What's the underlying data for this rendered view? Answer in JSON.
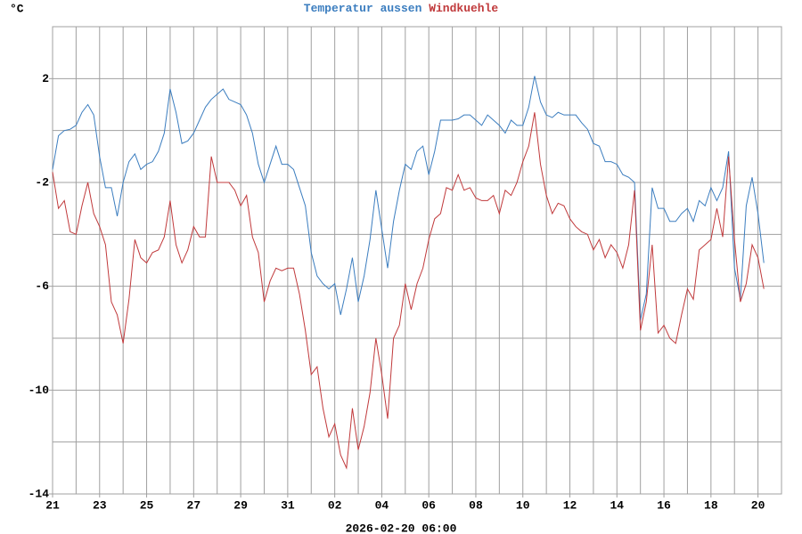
{
  "chart_data": {
    "type": "line",
    "unit": "°C",
    "footer": "2026-02-20 06:00",
    "grid": true,
    "xlim": [
      "2026-01-21 00:00",
      "2026-02-21 00:00"
    ],
    "ylim": [
      -14,
      4
    ],
    "yticks": [
      -14,
      -10,
      -6,
      -2,
      2
    ],
    "y_minor_ticks": [
      -12,
      -8,
      -4,
      0
    ],
    "xticks": [
      {
        "value": "2026-01-21 00:00",
        "label": "21"
      },
      {
        "value": "2026-01-23 00:00",
        "label": "23"
      },
      {
        "value": "2026-01-25 00:00",
        "label": "25"
      },
      {
        "value": "2026-01-27 00:00",
        "label": "27"
      },
      {
        "value": "2026-01-29 00:00",
        "label": "29"
      },
      {
        "value": "2026-01-31 00:00",
        "label": "31"
      },
      {
        "value": "2026-02-02 00:00",
        "label": "02"
      },
      {
        "value": "2026-02-04 00:00",
        "label": "04"
      },
      {
        "value": "2026-02-06 00:00",
        "label": "06"
      },
      {
        "value": "2026-02-08 00:00",
        "label": "08"
      },
      {
        "value": "2026-02-10 00:00",
        "label": "10"
      },
      {
        "value": "2026-02-12 00:00",
        "label": "12"
      },
      {
        "value": "2026-02-14 00:00",
        "label": "14"
      },
      {
        "value": "2026-02-16 00:00",
        "label": "16"
      },
      {
        "value": "2026-02-18 00:00",
        "label": "18"
      },
      {
        "value": "2026-02-20 00:00",
        "label": "20"
      }
    ],
    "x_minor_ticks": [
      "2026-01-22 00:00",
      "2026-01-24 00:00",
      "2026-01-26 00:00",
      "2026-01-28 00:00",
      "2026-01-30 00:00",
      "2026-02-01 00:00",
      "2026-02-03 00:00",
      "2026-02-05 00:00",
      "2026-02-07 00:00",
      "2026-02-09 00:00",
      "2026-02-11 00:00",
      "2026-02-13 00:00",
      "2026-02-15 00:00",
      "2026-02-17 00:00",
      "2026-02-19 00:00"
    ],
    "x": [
      "2026-01-21 00:00",
      "2026-01-21 06:00",
      "2026-01-21 12:00",
      "2026-01-21 18:00",
      "2026-01-22 00:00",
      "2026-01-22 06:00",
      "2026-01-22 12:00",
      "2026-01-22 18:00",
      "2026-01-23 00:00",
      "2026-01-23 06:00",
      "2026-01-23 12:00",
      "2026-01-23 18:00",
      "2026-01-24 00:00",
      "2026-01-24 06:00",
      "2026-01-24 12:00",
      "2026-01-24 18:00",
      "2026-01-25 00:00",
      "2026-01-25 06:00",
      "2026-01-25 12:00",
      "2026-01-25 18:00",
      "2026-01-26 00:00",
      "2026-01-26 06:00",
      "2026-01-26 12:00",
      "2026-01-26 18:00",
      "2026-01-27 00:00",
      "2026-01-27 06:00",
      "2026-01-27 12:00",
      "2026-01-27 18:00",
      "2026-01-28 00:00",
      "2026-01-28 06:00",
      "2026-01-28 12:00",
      "2026-01-28 18:00",
      "2026-01-29 00:00",
      "2026-01-29 06:00",
      "2026-01-29 12:00",
      "2026-01-29 18:00",
      "2026-01-30 00:00",
      "2026-01-30 06:00",
      "2026-01-30 12:00",
      "2026-01-30 18:00",
      "2026-01-31 00:00",
      "2026-01-31 06:00",
      "2026-01-31 12:00",
      "2026-01-31 18:00",
      "2026-02-01 00:00",
      "2026-02-01 06:00",
      "2026-02-01 12:00",
      "2026-02-01 18:00",
      "2026-02-02 00:00",
      "2026-02-02 06:00",
      "2026-02-02 12:00",
      "2026-02-02 18:00",
      "2026-02-03 00:00",
      "2026-02-03 06:00",
      "2026-02-03 12:00",
      "2026-02-03 18:00",
      "2026-02-04 00:00",
      "2026-02-04 06:00",
      "2026-02-04 12:00",
      "2026-02-04 18:00",
      "2026-02-05 00:00",
      "2026-02-05 06:00",
      "2026-02-05 12:00",
      "2026-02-05 18:00",
      "2026-02-06 00:00",
      "2026-02-06 06:00",
      "2026-02-06 12:00",
      "2026-02-06 18:00",
      "2026-02-07 00:00",
      "2026-02-07 06:00",
      "2026-02-07 12:00",
      "2026-02-07 18:00",
      "2026-02-08 00:00",
      "2026-02-08 06:00",
      "2026-02-08 12:00",
      "2026-02-08 18:00",
      "2026-02-09 00:00",
      "2026-02-09 06:00",
      "2026-02-09 12:00",
      "2026-02-09 18:00",
      "2026-02-10 00:00",
      "2026-02-10 06:00",
      "2026-02-10 12:00",
      "2026-02-10 18:00",
      "2026-02-11 00:00",
      "2026-02-11 06:00",
      "2026-02-11 12:00",
      "2026-02-11 18:00",
      "2026-02-12 00:00",
      "2026-02-12 06:00",
      "2026-02-12 12:00",
      "2026-02-12 18:00",
      "2026-02-13 00:00",
      "2026-02-13 06:00",
      "2026-02-13 12:00",
      "2026-02-13 18:00",
      "2026-02-14 00:00",
      "2026-02-14 06:00",
      "2026-02-14 12:00",
      "2026-02-14 18:00",
      "2026-02-15 00:00",
      "2026-02-15 06:00",
      "2026-02-15 12:00",
      "2026-02-15 18:00",
      "2026-02-16 00:00",
      "2026-02-16 06:00",
      "2026-02-16 12:00",
      "2026-02-16 18:00",
      "2026-02-17 00:00",
      "2026-02-17 06:00",
      "2026-02-17 12:00",
      "2026-02-17 18:00",
      "2026-02-18 00:00",
      "2026-02-18 06:00",
      "2026-02-18 12:00",
      "2026-02-18 18:00",
      "2026-02-19 00:00",
      "2026-02-19 06:00",
      "2026-02-19 12:00",
      "2026-02-19 18:00",
      "2026-02-20 00:00",
      "2026-02-20 06:00"
    ],
    "series": [
      {
        "name": "Temperatur aussen",
        "color": "#3b7dbf",
        "values": [
          -1.5,
          -0.2,
          0,
          0.05,
          0.2,
          0.7,
          1.0,
          0.6,
          -1,
          -2.2,
          -2.2,
          -3.3,
          -2,
          -1.2,
          -0.9,
          -1.5,
          -1.3,
          -1.2,
          -0.8,
          -0.1,
          1.6,
          0.7,
          -0.5,
          -0.4,
          -0.1,
          0.4,
          0.9,
          1.2,
          1.4,
          1.6,
          1.2,
          1.1,
          1.0,
          0.6,
          -0.1,
          -1.3,
          -2.0,
          -1.3,
          -0.6,
          -1.3,
          -1.3,
          -1.5,
          -2.2,
          -2.9,
          -4.7,
          -5.6,
          -5.9,
          -6.1,
          -5.9,
          -7.1,
          -6.1,
          -4.9,
          -6.6,
          -5.6,
          -4.2,
          -2.3,
          -3.8,
          -5.3,
          -3.5,
          -2.3,
          -1.3,
          -1.5,
          -0.8,
          -0.6,
          -1.7,
          -0.8,
          0.4,
          0.4,
          0.4,
          0.45,
          0.6,
          0.6,
          0.4,
          0.2,
          0.6,
          0.4,
          0.2,
          -0.1,
          0.4,
          0.2,
          0.2,
          0.9,
          2.1,
          1.1,
          0.6,
          0.5,
          0.7,
          0.6,
          0.6,
          0.6,
          0.3,
          0.05,
          -0.5,
          -0.6,
          -1.2,
          -1.2,
          -1.3,
          -1.7,
          -1.8,
          -2.0,
          -7.3,
          -6.3,
          -2.2,
          -3.0,
          -3.0,
          -3.5,
          -3.5,
          -3.2,
          -3.0,
          -3.5,
          -2.7,
          -2.9,
          -2.2,
          -2.7,
          -2.2,
          -0.8,
          -5.3,
          -6.5,
          -2.9,
          -1.8,
          -3.2,
          -5.1
        ]
      },
      {
        "name": "Windkuehle",
        "color": "#c0393b",
        "values": [
          -1.6,
          -3.0,
          -2.7,
          -3.9,
          -4.0,
          -2.9,
          -2.0,
          -3.2,
          -3.7,
          -4.4,
          -6.6,
          -7.1,
          -8.2,
          -6.5,
          -4.2,
          -4.9,
          -5.1,
          -4.7,
          -4.6,
          -4.1,
          -2.7,
          -4.4,
          -5.1,
          -4.6,
          -3.7,
          -4.1,
          -4.1,
          -1.0,
          -2.0,
          -2.0,
          -2.0,
          -2.3,
          -2.9,
          -2.5,
          -4.1,
          -4.7,
          -6.6,
          -5.8,
          -5.3,
          -5.4,
          -5.3,
          -5.3,
          -6.3,
          -7.7,
          -9.4,
          -9.1,
          -10.7,
          -11.8,
          -11.3,
          -12.5,
          -13.0,
          -10.7,
          -12.3,
          -11.4,
          -10.1,
          -8.0,
          -9.4,
          -11.1,
          -8.0,
          -7.5,
          -5.9,
          -6.9,
          -5.9,
          -5.3,
          -4.2,
          -3.4,
          -3.2,
          -2.2,
          -2.3,
          -1.7,
          -2.3,
          -2.2,
          -2.6,
          -2.7,
          -2.7,
          -2.5,
          -3.2,
          -2.3,
          -2.5,
          -2.0,
          -1.2,
          -0.6,
          0.7,
          -1.3,
          -2.5,
          -3.2,
          -2.8,
          -2.9,
          -3.4,
          -3.7,
          -3.9,
          -4.0,
          -4.6,
          -4.2,
          -4.9,
          -4.4,
          -4.7,
          -5.3,
          -4.4,
          -2.3,
          -7.7,
          -6.6,
          -4.4,
          -7.8,
          -7.5,
          -8.0,
          -8.2,
          -7.1,
          -6.1,
          -6.5,
          -4.6,
          -4.4,
          -4.2,
          -3.0,
          -4.1,
          -1.0,
          -4.2,
          -6.6,
          -5.9,
          -4.4,
          -4.9,
          -6.1
        ]
      }
    ]
  }
}
